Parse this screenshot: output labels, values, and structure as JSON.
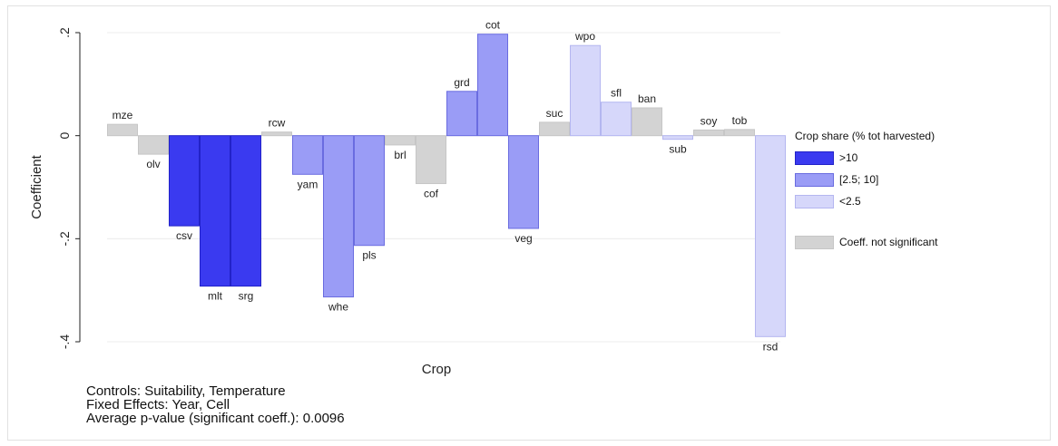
{
  "chart_data": {
    "type": "bar",
    "xlabel": "Crop",
    "ylabel": "Coefficient",
    "ylim": [
      -0.4,
      0.2
    ],
    "yticks": [
      -0.4,
      -0.2,
      0,
      0.2
    ],
    "ytick_labels": [
      "-.4",
      "-.2",
      "0",
      ".2"
    ],
    "grid": true,
    "legend_position": "right",
    "categories": [
      "mze",
      "olv",
      "csv",
      "mlt",
      "srg",
      "rcw",
      "yam",
      "whe",
      "pls",
      "brl",
      "cof",
      "grd",
      "cot",
      "veg",
      "suc",
      "wpo",
      "sfl",
      "ban",
      "sub",
      "soy",
      "tob",
      "rsd"
    ],
    "values": [
      0.022,
      -0.036,
      -0.175,
      -0.292,
      -0.292,
      0.007,
      -0.075,
      -0.313,
      -0.213,
      -0.018,
      -0.093,
      0.086,
      0.197,
      -0.18,
      0.026,
      0.175,
      0.065,
      0.054,
      -0.007,
      0.011,
      0.012,
      -0.39
    ],
    "groups": [
      "ns",
      "ns",
      "gt10",
      "gt10",
      "gt10",
      "ns",
      "mid",
      "mid",
      "mid",
      "ns",
      "ns",
      "mid",
      "mid",
      "mid",
      "ns",
      "lt2_5",
      "lt2_5",
      "ns",
      "lt2_5",
      "ns",
      "ns",
      "lt2_5"
    ],
    "legend": {
      "title": "Crop share (% tot harvested)",
      "items": [
        {
          "key": "gt10",
          "label": ">10"
        },
        {
          "key": "mid",
          "label": "[2.5; 10]"
        },
        {
          "key": "lt2_5",
          "label": "<2.5"
        },
        {
          "key": "ns",
          "label": "Coeff. not significant"
        }
      ]
    }
  },
  "colors": {
    "gt10": {
      "fill": "#3a3af0",
      "stroke": "#2222c8"
    },
    "mid": {
      "fill": "#9a9cf6",
      "stroke": "#6a6ce0"
    },
    "lt2_5": {
      "fill": "#d6d7fa",
      "stroke": "#b4b6f0"
    },
    "ns": {
      "fill": "#d3d3d3",
      "stroke": "#c6c6c6"
    },
    "grid": "#ececec",
    "axis": "#222222"
  },
  "notes": {
    "controls": "Controls: Suitability, Temperature",
    "fixed_effects": "Fixed Effects: Year,  Cell",
    "pvalue": "Average p-value (significant coeff.): 0.0096"
  }
}
